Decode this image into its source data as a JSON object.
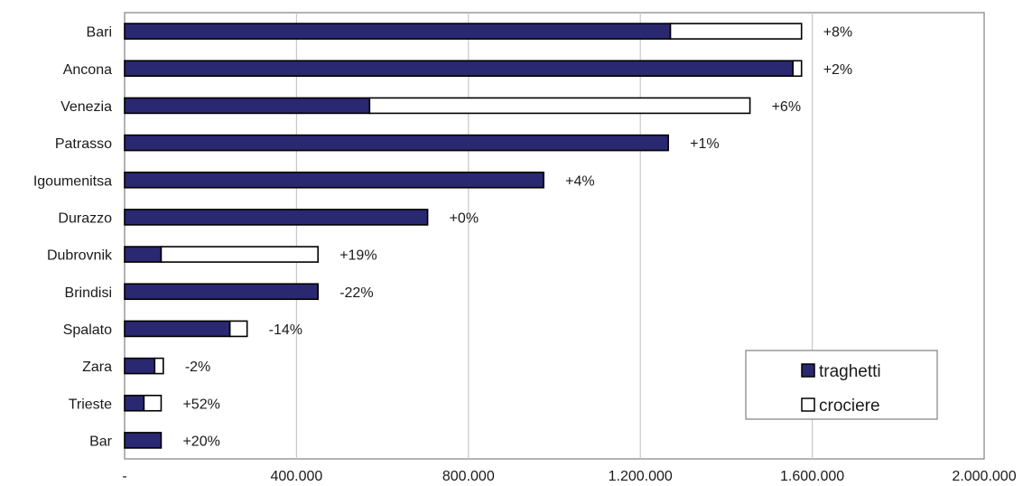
{
  "chart_data": {
    "type": "bar",
    "orientation": "horizontal",
    "stacked": true,
    "categories": [
      "Bari",
      "Ancona",
      "Venezia",
      "Patrasso",
      "Igoumenitsa",
      "Durazzo",
      "Dubrovnik",
      "Brindisi",
      "Spalato",
      "Zara",
      "Trieste",
      "Bar"
    ],
    "series": [
      {
        "name": "traghetti",
        "color": "#2a2870",
        "values": [
          1270000,
          1555000,
          570000,
          1265000,
          975000,
          705000,
          85000,
          450000,
          245000,
          70000,
          45000,
          85000
        ]
      },
      {
        "name": "crociere",
        "color": "#ffffff",
        "values": [
          305000,
          20000,
          885000,
          0,
          0,
          0,
          365000,
          0,
          40000,
          20000,
          40000,
          0
        ]
      }
    ],
    "changes": [
      "+8%",
      "+2%",
      "+6%",
      "+1%",
      "+4%",
      "+0%",
      "+19%",
      "-22%",
      "-14%",
      "-2%",
      "+52%",
      "+20%"
    ],
    "xlim": [
      0,
      2000000
    ],
    "xticks": [
      0,
      400000,
      800000,
      1200000,
      1600000,
      2000000
    ],
    "xtick_labels": [
      "-",
      "400.000",
      "800.000",
      "1.200.000",
      "1.600.000",
      "2.000.000"
    ],
    "grid": "vertical",
    "legend_position": "bottom-right",
    "title": "",
    "xlabel": "",
    "ylabel": ""
  }
}
